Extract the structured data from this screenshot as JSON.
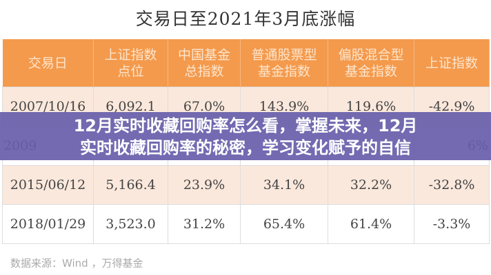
{
  "title": "交易日至2021年3月底涨幅",
  "headers": [
    [
      "交易日",
      ""
    ],
    [
      "上证指数",
      "点位"
    ],
    [
      "中国基金",
      "总指数"
    ],
    [
      "普通股票型",
      "基金指数"
    ],
    [
      "偏股混合型",
      "基金指数"
    ],
    [
      "上证指数",
      ""
    ]
  ],
  "rows": [
    [
      "2007/10/16",
      "6,092.1",
      "67.0%",
      "143.9%",
      "119.6%",
      "-42.9%"
    ],
    [
      "2009",
      "",
      "",
      "",
      "",
      "6%"
    ],
    [
      "2015/06/12",
      "5,166.4",
      "23.9%",
      "34.1%",
      "32.2%",
      "-32.8%"
    ],
    [
      "2018/01/29",
      "3,523.0",
      "31.2%",
      "65.4%",
      "61.4%",
      "-3.3%"
    ]
  ],
  "overlay": {
    "line1": "12月实时收藏回购率怎么看，掌握未来，12月",
    "line2": "实时收藏回购率的秘密，学习变化赋予的自信"
  },
  "source": "数据来源：Wind ，万得基金",
  "colors": {
    "header": "#f49a4d",
    "overlay": "#675daa",
    "alt_row": "#fbe8dc"
  }
}
